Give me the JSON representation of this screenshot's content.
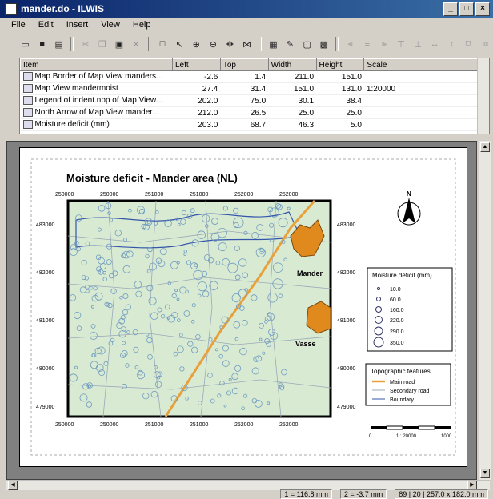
{
  "window": {
    "title": "mander.do - ILWIS",
    "min": "_",
    "max": "□",
    "close": "×"
  },
  "menu": [
    "File",
    "Edit",
    "Insert",
    "View",
    "Help"
  ],
  "grid": {
    "columns": [
      "Item",
      "Left",
      "Top",
      "Width",
      "Height",
      "Scale"
    ],
    "rows": [
      {
        "item": "Map Border of Map View manders...",
        "left": "-2.6",
        "top": "1.4",
        "width": "211.0",
        "height": "151.0",
        "scale": ""
      },
      {
        "item": "Map View mandermoist",
        "left": "27.4",
        "top": "31.4",
        "width": "151.0",
        "height": "131.0",
        "scale": "1:20000"
      },
      {
        "item": "Legend of indent.npp of Map View...",
        "left": "202.0",
        "top": "75.0",
        "width": "30.1",
        "height": "38.4",
        "scale": ""
      },
      {
        "item": "North Arrow of Map View mander...",
        "left": "212.0",
        "top": "26.5",
        "width": "25.0",
        "height": "25.0",
        "scale": ""
      },
      {
        "item": "Moisture deficit (mm)",
        "left": "203.0",
        "top": "68.7",
        "width": "46.3",
        "height": "5.0",
        "scale": ""
      }
    ]
  },
  "map": {
    "title": "Moisture deficit - Mander area (NL)",
    "x_ticks": [
      "250000",
      "250000",
      "251000",
      "251000",
      "252000",
      "252000"
    ],
    "y_ticks": [
      "483000",
      "482000",
      "481000",
      "480000",
      "479000"
    ],
    "places": [
      "Mander",
      "Vasse"
    ],
    "north": "N",
    "legend1": {
      "title": "Moisture deficit (mm)",
      "items": [
        "10.0",
        "60.0",
        "160.0",
        "220.0",
        "290.0",
        "350.0"
      ]
    },
    "legend2": {
      "title": "Topographic features",
      "items": [
        "Main road",
        "Secondary road",
        "Boundary"
      ]
    },
    "scalebar": {
      "start": "0",
      "mid": "1 : 20000",
      "end": "1000"
    }
  },
  "status": {
    "x": "1 = 116.8 mm",
    "y": "2 = -3.7 mm",
    "page": "89 | 20 | 257.0 x 182.0 mm"
  },
  "colors": {
    "accent": "#0a246a",
    "map_bg": "#d9ead3",
    "road_main": "#e8a13a",
    "town": "#e08a1e",
    "circle": "#7aa8c8"
  }
}
